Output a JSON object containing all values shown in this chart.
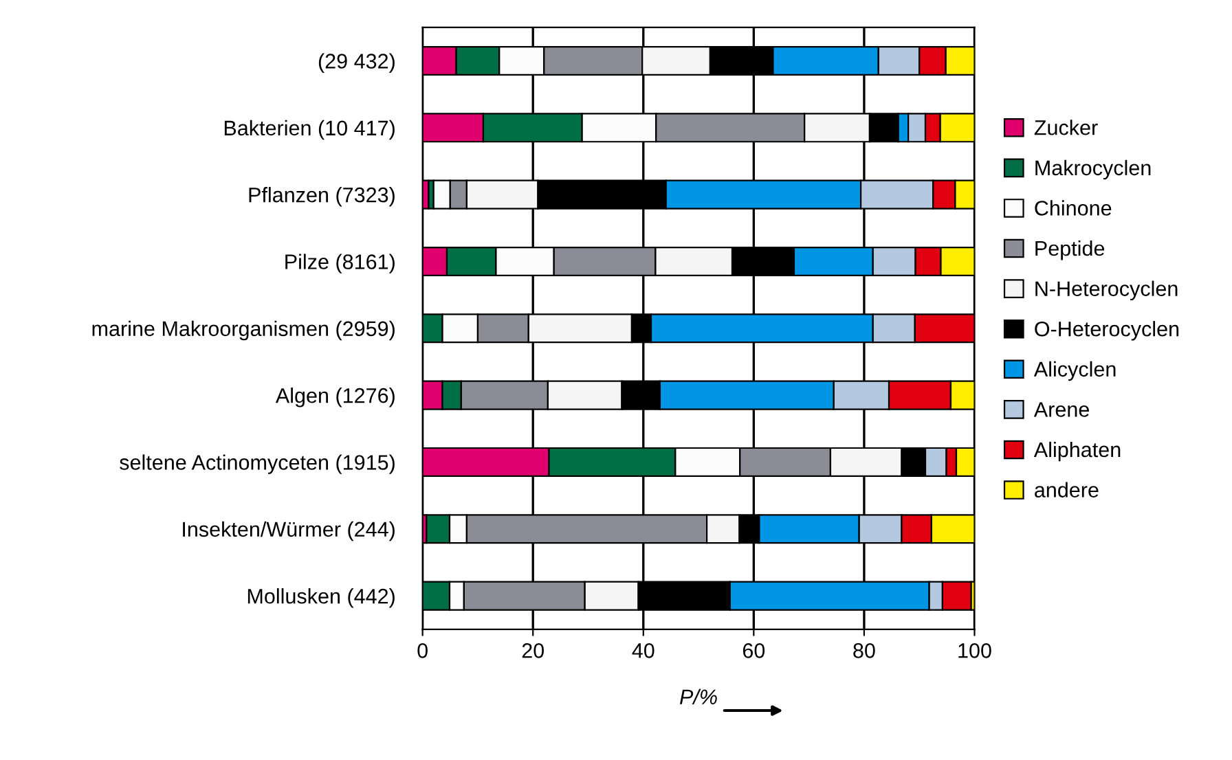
{
  "chart_data": {
    "type": "bar",
    "orientation": "horizontal",
    "stacked": true,
    "xlabel": "P/%",
    "categories": [
      "(29 432)",
      "Bakterien (10 417)",
      "Pflanzen (7323)",
      "Pilze (8161)",
      "marine Makroorganismen (2959)",
      "Algen (1276)",
      "seltene Actinomyceten (1915)",
      "Insekten/Würmer (244)",
      "Mollusken (442)"
    ],
    "series": [
      {
        "name": "Zucker",
        "color": "#e0006e",
        "values": [
          6.1,
          11.0,
          1.1,
          4.4,
          null,
          3.6,
          22.9,
          0.7,
          null
        ]
      },
      {
        "name": "Makrocyclen",
        "color": "#006e46",
        "values": [
          7.8,
          17.9,
          0.9,
          8.9,
          3.6,
          3.4,
          22.9,
          4.2,
          4.9
        ]
      },
      {
        "name": "Chinone",
        "color": "#fbfbfb",
        "values": [
          8.1,
          13.4,
          3.0,
          10.5,
          6.4,
          null,
          11.7,
          3.1,
          2.6
        ]
      },
      {
        "name": "Peptide",
        "color": "#8c8c96",
        "values": [
          17.8,
          26.9,
          3.0,
          18.4,
          9.2,
          15.7,
          16.4,
          43.5,
          21.9
        ]
      },
      {
        "name": "N-Heterocyclen",
        "color": "#f5f5f5",
        "values": [
          12.3,
          11.8,
          12.9,
          13.9,
          18.7,
          13.4,
          12.9,
          5.9,
          9.7
        ]
      },
      {
        "name": "O-Heterocyclen",
        "color": "#000000",
        "values": [
          11.4,
          5.2,
          23.2,
          11.2,
          3.5,
          6.9,
          4.1,
          3.6,
          16.6
        ]
      },
      {
        "name": "Alicyclen",
        "color": "#0096e6",
        "values": [
          19.1,
          1.8,
          35.3,
          14.3,
          40.2,
          31.5,
          0.2,
          18.1,
          36.1
        ]
      },
      {
        "name": "Arene",
        "color": "#b4c8e0",
        "values": [
          7.4,
          3.1,
          13.1,
          7.7,
          7.6,
          10.0,
          3.8,
          7.7,
          2.4
        ]
      },
      {
        "name": "Aliphaten",
        "color": "#e00010",
        "values": [
          4.8,
          2.7,
          4.0,
          4.6,
          10.8,
          11.2,
          1.8,
          5.4,
          5.2
        ]
      },
      {
        "name": "andere",
        "color": "#ffee00",
        "values": [
          5.2,
          6.2,
          3.5,
          6.1,
          null,
          4.3,
          3.3,
          7.8,
          0.6
        ]
      }
    ],
    "xlim": [
      0,
      100
    ],
    "xticks": [
      0,
      20,
      40,
      60,
      80,
      100
    ],
    "grid": "x",
    "legend": "right"
  }
}
